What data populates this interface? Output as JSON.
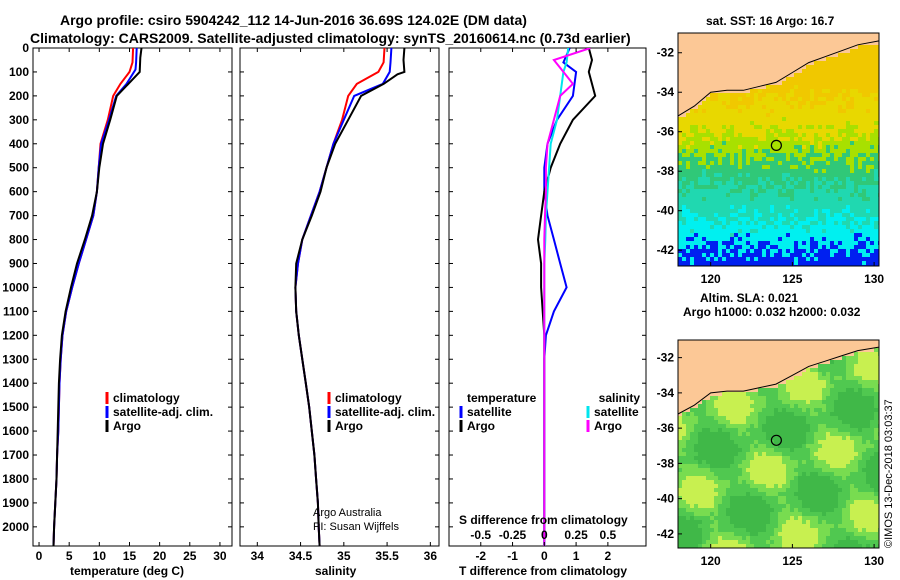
{
  "title": {
    "line1": "Argo profile: csiro 5904242_112 14-Jun-2016 36.69S 124.02E (DM data)",
    "line2": "Climatology: CARS2009. Satellite-adjusted climatology: synTS_20160614.nc (0.73d earlier)"
  },
  "colors": {
    "climatology": "#ff0000",
    "satellite": "#0000ff",
    "argo": "#000000",
    "sat_salinity": "#00e5ee",
    "argo_salinity": "#ff00ff",
    "land": "#fcc896"
  },
  "depth_ticks": [
    "0",
    "100",
    "200",
    "300",
    "400",
    "500",
    "600",
    "700",
    "800",
    "900",
    "1000",
    "1100",
    "1200",
    "1300",
    "1400",
    "1500",
    "1600",
    "1700",
    "1800",
    "1900",
    "2000"
  ],
  "chart_data": [
    {
      "type": "line",
      "panel": "temperature",
      "xlabel": "temperature (deg C)",
      "xlim": [
        -1,
        32
      ],
      "ylim": [
        2080,
        0
      ],
      "xticks": [
        "0",
        "5",
        "10",
        "15",
        "20",
        "25",
        "30"
      ],
      "legend": [
        "climatology",
        "satellite-adj. clim.",
        "Argo"
      ],
      "series": [
        {
          "name": "climatology",
          "points": [
            [
              15.6,
              0
            ],
            [
              15.5,
              60
            ],
            [
              15.0,
              100
            ],
            [
              13.5,
              150
            ],
            [
              12.3,
              200
            ],
            [
              11.4,
              300
            ],
            [
              10.2,
              400
            ],
            [
              9.9,
              500
            ],
            [
              9.6,
              600
            ],
            [
              9.0,
              700
            ],
            [
              7.8,
              800
            ],
            [
              6.6,
              900
            ],
            [
              5.5,
              1000
            ],
            [
              4.5,
              1100
            ],
            [
              3.9,
              1200
            ],
            [
              3.6,
              1300
            ],
            [
              3.4,
              1400
            ],
            [
              3.3,
              1500
            ],
            [
              3.2,
              1600
            ],
            [
              3.0,
              1700
            ],
            [
              2.9,
              1800
            ],
            [
              2.7,
              1900
            ],
            [
              2.5,
              2000
            ],
            [
              2.4,
              2080
            ]
          ]
        },
        {
          "name": "satellite-adj. clim.",
          "points": [
            [
              16.2,
              0
            ],
            [
              16.1,
              60
            ],
            [
              16.0,
              90
            ],
            [
              14.5,
              150
            ],
            [
              12.8,
              200
            ],
            [
              11.6,
              300
            ],
            [
              10.3,
              400
            ],
            [
              9.9,
              500
            ],
            [
              9.6,
              600
            ],
            [
              9.0,
              700
            ],
            [
              7.8,
              800
            ],
            [
              6.6,
              900
            ],
            [
              5.5,
              1000
            ],
            [
              4.5,
              1100
            ],
            [
              3.9,
              1200
            ],
            [
              3.6,
              1300
            ],
            [
              3.4,
              1400
            ],
            [
              3.3,
              1500
            ],
            [
              3.2,
              1600
            ],
            [
              3.0,
              1700
            ],
            [
              2.9,
              1800
            ],
            [
              2.7,
              1900
            ],
            [
              2.5,
              2000
            ],
            [
              2.4,
              2080
            ]
          ]
        },
        {
          "name": "Argo",
          "points": [
            [
              17.0,
              0
            ],
            [
              16.8,
              40
            ],
            [
              16.7,
              100
            ],
            [
              14.8,
              150
            ],
            [
              12.9,
              200
            ],
            [
              11.8,
              300
            ],
            [
              10.6,
              400
            ],
            [
              10.0,
              500
            ],
            [
              9.6,
              600
            ],
            [
              8.8,
              700
            ],
            [
              7.6,
              800
            ],
            [
              6.3,
              900
            ],
            [
              5.3,
              1000
            ],
            [
              4.4,
              1100
            ],
            [
              3.8,
              1200
            ],
            [
              3.5,
              1300
            ],
            [
              3.3,
              1400
            ],
            [
              3.2,
              1500
            ],
            [
              3.1,
              1600
            ],
            [
              3.0,
              1700
            ],
            [
              2.9,
              1800
            ],
            [
              2.7,
              1900
            ],
            [
              2.5,
              2000
            ],
            [
              2.4,
              2080
            ]
          ]
        }
      ]
    },
    {
      "type": "line",
      "panel": "salinity",
      "xlabel": "salinity",
      "xlim": [
        33.8,
        36.1
      ],
      "ylim": [
        2080,
        0
      ],
      "xticks": [
        "34",
        "34.5",
        "35",
        "35.5",
        "36"
      ],
      "legend": [
        "climatology",
        "satellite-adj. clim.",
        "Argo"
      ],
      "footnote": [
        "Argo Australia",
        "PI: Susan Wijffels"
      ],
      "series": [
        {
          "name": "climatology",
          "points": [
            [
              35.47,
              0
            ],
            [
              35.46,
              60
            ],
            [
              35.4,
              100
            ],
            [
              35.15,
              150
            ],
            [
              35.05,
              200
            ],
            [
              34.98,
              300
            ],
            [
              34.88,
              400
            ],
            [
              34.8,
              500
            ],
            [
              34.72,
              600
            ],
            [
              34.62,
              700
            ],
            [
              34.52,
              800
            ],
            [
              34.47,
              900
            ],
            [
              34.44,
              1000
            ],
            [
              34.45,
              1100
            ],
            [
              34.48,
              1200
            ],
            [
              34.52,
              1300
            ],
            [
              34.56,
              1400
            ],
            [
              34.6,
              1500
            ],
            [
              34.63,
              1600
            ],
            [
              34.66,
              1700
            ],
            [
              34.68,
              1800
            ],
            [
              34.7,
              1900
            ],
            [
              34.71,
              2000
            ],
            [
              34.72,
              2080
            ]
          ]
        },
        {
          "name": "satellite-adj. clim.",
          "points": [
            [
              35.55,
              0
            ],
            [
              35.54,
              60
            ],
            [
              35.53,
              100
            ],
            [
              35.45,
              150
            ],
            [
              35.12,
              200
            ],
            [
              35.0,
              300
            ],
            [
              34.88,
              400
            ],
            [
              34.8,
              500
            ],
            [
              34.72,
              600
            ],
            [
              34.62,
              700
            ],
            [
              34.52,
              800
            ],
            [
              34.47,
              900
            ],
            [
              34.44,
              1000
            ],
            [
              34.45,
              1100
            ],
            [
              34.48,
              1200
            ],
            [
              34.52,
              1300
            ],
            [
              34.56,
              1400
            ],
            [
              34.6,
              1500
            ],
            [
              34.63,
              1600
            ],
            [
              34.66,
              1700
            ],
            [
              34.68,
              1800
            ],
            [
              34.7,
              1900
            ],
            [
              34.71,
              2000
            ],
            [
              34.72,
              2080
            ]
          ]
        },
        {
          "name": "Argo",
          "points": [
            [
              35.7,
              0
            ],
            [
              35.69,
              50
            ],
            [
              35.7,
              100
            ],
            [
              35.62,
              110
            ],
            [
              35.46,
              150
            ],
            [
              35.2,
              200
            ],
            [
              35.05,
              300
            ],
            [
              34.9,
              400
            ],
            [
              34.8,
              500
            ],
            [
              34.73,
              600
            ],
            [
              34.63,
              700
            ],
            [
              34.52,
              800
            ],
            [
              34.45,
              900
            ],
            [
              34.44,
              1000
            ],
            [
              34.45,
              1100
            ],
            [
              34.48,
              1200
            ],
            [
              34.52,
              1300
            ],
            [
              34.56,
              1400
            ],
            [
              34.6,
              1500
            ],
            [
              34.63,
              1600
            ],
            [
              34.66,
              1700
            ],
            [
              34.68,
              1800
            ],
            [
              34.7,
              1900
            ],
            [
              34.71,
              2000
            ],
            [
              34.72,
              2080
            ]
          ]
        }
      ]
    },
    {
      "type": "line",
      "panel": "difference",
      "xlabel": "T difference from climatology",
      "xlabel_top": "S difference from climatology",
      "xlim": [
        -3,
        3.2
      ],
      "ylim": [
        2080,
        0
      ],
      "xticks": [
        "-2",
        "-1",
        "0",
        "1",
        "2"
      ],
      "xticks_salinity": [
        "-0.5",
        "-0.25",
        "0",
        "0.25",
        "0.5"
      ],
      "legend_temperature": [
        "temperature",
        "satellite",
        "Argo"
      ],
      "legend_salinity": [
        "salinity",
        "satellite",
        "Argo"
      ],
      "series": [
        {
          "name": "satellite",
          "points": [
            [
              0.8,
              0
            ],
            [
              0.6,
              60
            ],
            [
              1.0,
              100
            ],
            [
              0.9,
              200
            ],
            [
              0.4,
              300
            ],
            [
              0.1,
              400
            ],
            [
              0.0,
              500
            ],
            [
              0.0,
              600
            ],
            [
              0.1,
              700
            ],
            [
              0.3,
              800
            ],
            [
              0.5,
              900
            ],
            [
              0.7,
              1000
            ],
            [
              0.3,
              1100
            ],
            [
              0.05,
              1200
            ],
            [
              0,
              1300
            ],
            [
              0,
              1400
            ],
            [
              0,
              1500
            ],
            [
              0,
              1600
            ],
            [
              0,
              1700
            ],
            [
              0,
              1800
            ],
            [
              0,
              1900
            ],
            [
              0,
              2000
            ],
            [
              0,
              2080
            ]
          ]
        },
        {
          "name": "Argo",
          "points": [
            [
              1.4,
              0
            ],
            [
              1.5,
              50
            ],
            [
              1.4,
              100
            ],
            [
              1.6,
              200
            ],
            [
              0.9,
              300
            ],
            [
              0.5,
              400
            ],
            [
              0.2,
              500
            ],
            [
              0,
              600
            ],
            [
              -0.1,
              700
            ],
            [
              -0.2,
              800
            ],
            [
              -0.1,
              900
            ],
            [
              -0.1,
              1000
            ],
            [
              -0.05,
              1100
            ],
            [
              0,
              1200
            ],
            [
              0,
              1300
            ],
            [
              0,
              1400
            ],
            [
              0,
              1500
            ],
            [
              0,
              1600
            ],
            [
              0,
              1700
            ],
            [
              0,
              1800
            ],
            [
              0,
              1900
            ],
            [
              0,
              2000
            ],
            [
              0,
              2080
            ]
          ]
        },
        {
          "name": "satellite",
          "points": [
            [
              0.75,
              0
            ],
            [
              0.7,
              60
            ],
            [
              0.6,
              100
            ],
            [
              0.55,
              150
            ],
            [
              0.5,
              200
            ],
            [
              0.4,
              300
            ],
            [
              0.2,
              400
            ],
            [
              0.15,
              500
            ],
            [
              0.1,
              600
            ],
            [
              0.05,
              700
            ],
            [
              0.03,
              800
            ],
            [
              0,
              900
            ],
            [
              0,
              1000
            ],
            [
              0,
              1200
            ],
            [
              0,
              1400
            ],
            [
              0,
              1600
            ],
            [
              0,
              1800
            ],
            [
              0,
              2000
            ],
            [
              0,
              2080
            ]
          ]
        },
        {
          "name": "Argo",
          "points": [
            [
              1.45,
              0
            ],
            [
              0.3,
              50
            ],
            [
              0.6,
              100
            ],
            [
              0.9,
              150
            ],
            [
              0.5,
              200
            ],
            [
              0.3,
              300
            ],
            [
              0.1,
              400
            ],
            [
              0.05,
              500
            ],
            [
              0.05,
              600
            ],
            [
              0.02,
              700
            ],
            [
              0,
              800
            ],
            [
              0,
              1000
            ],
            [
              0,
              1200
            ],
            [
              0,
              1400
            ],
            [
              0,
              1600
            ],
            [
              0,
              1800
            ],
            [
              0,
              2000
            ],
            [
              0,
              2080
            ]
          ]
        }
      ]
    },
    {
      "type": "heatmap",
      "panel": "map_sst",
      "title": "sat. SST: 16 Argo: 16.7",
      "xlim": [
        118,
        130.3
      ],
      "ylim": [
        -42.8,
        -31
      ],
      "xticks": [
        "120",
        "125",
        "130"
      ],
      "yticks": [
        "-32",
        "-34",
        "-36",
        "-38",
        "-40",
        "-42"
      ],
      "profile_location": [
        124.02,
        -36.69
      ]
    },
    {
      "type": "heatmap",
      "panel": "map_sla",
      "title_line1": "Altim. SLA: 0.021",
      "title_line2": "Argo h1000: 0.032 h2000: 0.032",
      "xlim": [
        118,
        130.3
      ],
      "ylim": [
        -42.8,
        -31
      ],
      "xticks": [
        "120",
        "125",
        "130"
      ],
      "yticks": [
        "-32",
        "-34",
        "-36",
        "-38",
        "-40",
        "-42"
      ],
      "profile_location": [
        124.02,
        -36.69
      ]
    }
  ],
  "credit": "©IMOS 13-Dec-2018 03:03:37"
}
